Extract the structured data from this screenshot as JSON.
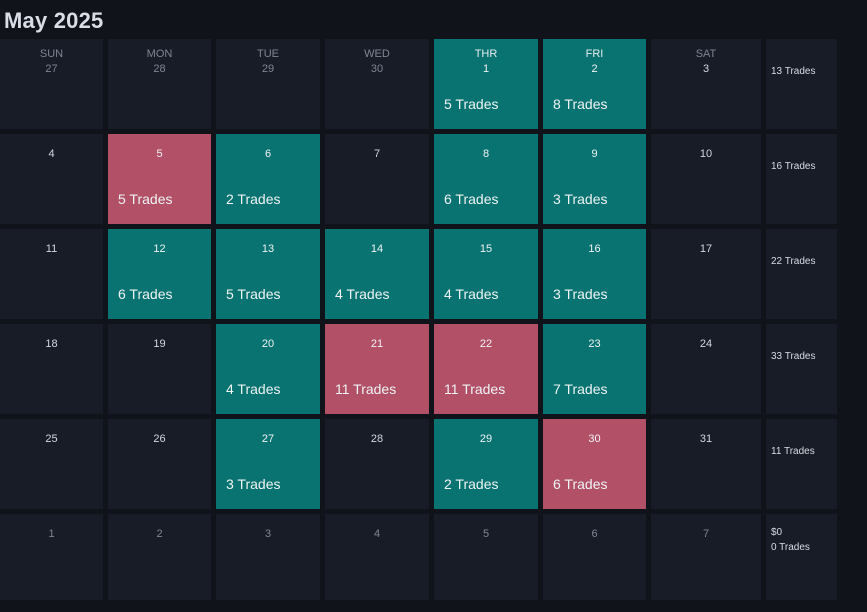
{
  "calendar": {
    "title": "May 2025",
    "weekdays": [
      "SUN",
      "MON",
      "TUE",
      "WED",
      "THR",
      "FRI",
      "SAT"
    ],
    "weeks": [
      {
        "days": [
          {
            "num": "27",
            "muted": true,
            "status": "none",
            "trades": ""
          },
          {
            "num": "28",
            "muted": true,
            "status": "none",
            "trades": ""
          },
          {
            "num": "29",
            "muted": true,
            "status": "none",
            "trades": ""
          },
          {
            "num": "30",
            "muted": true,
            "status": "none",
            "trades": ""
          },
          {
            "num": "1",
            "muted": false,
            "status": "win",
            "trades": "5 Trades"
          },
          {
            "num": "2",
            "muted": false,
            "status": "win",
            "trades": "8 Trades"
          },
          {
            "num": "3",
            "muted": false,
            "status": "none",
            "trades": ""
          }
        ],
        "summary": {
          "pnl": "",
          "trades": "13 Trades"
        }
      },
      {
        "days": [
          {
            "num": "4",
            "muted": false,
            "status": "none",
            "trades": ""
          },
          {
            "num": "5",
            "muted": false,
            "status": "loss",
            "trades": "5 Trades"
          },
          {
            "num": "6",
            "muted": false,
            "status": "win",
            "trades": "2 Trades"
          },
          {
            "num": "7",
            "muted": false,
            "status": "none",
            "trades": ""
          },
          {
            "num": "8",
            "muted": false,
            "status": "win",
            "trades": "6 Trades"
          },
          {
            "num": "9",
            "muted": false,
            "status": "win",
            "trades": "3 Trades"
          },
          {
            "num": "10",
            "muted": false,
            "status": "none",
            "trades": ""
          }
        ],
        "summary": {
          "pnl": "",
          "trades": "16 Trades"
        }
      },
      {
        "days": [
          {
            "num": "11",
            "muted": false,
            "status": "none",
            "trades": ""
          },
          {
            "num": "12",
            "muted": false,
            "status": "win",
            "trades": "6 Trades"
          },
          {
            "num": "13",
            "muted": false,
            "status": "win",
            "trades": "5 Trades"
          },
          {
            "num": "14",
            "muted": false,
            "status": "win",
            "trades": "4 Trades"
          },
          {
            "num": "15",
            "muted": false,
            "status": "win",
            "trades": "4 Trades"
          },
          {
            "num": "16",
            "muted": false,
            "status": "win",
            "trades": "3 Trades"
          },
          {
            "num": "17",
            "muted": false,
            "status": "none",
            "trades": ""
          }
        ],
        "summary": {
          "pnl": "",
          "trades": "22 Trades"
        }
      },
      {
        "days": [
          {
            "num": "18",
            "muted": false,
            "status": "none",
            "trades": ""
          },
          {
            "num": "19",
            "muted": false,
            "status": "none",
            "trades": ""
          },
          {
            "num": "20",
            "muted": false,
            "status": "win",
            "trades": "4 Trades"
          },
          {
            "num": "21",
            "muted": false,
            "status": "loss",
            "trades": "11 Trades"
          },
          {
            "num": "22",
            "muted": false,
            "status": "loss",
            "trades": "11 Trades"
          },
          {
            "num": "23",
            "muted": false,
            "status": "win",
            "trades": "7 Trades"
          },
          {
            "num": "24",
            "muted": false,
            "status": "none",
            "trades": ""
          }
        ],
        "summary": {
          "pnl": "",
          "trades": "33 Trades"
        }
      },
      {
        "days": [
          {
            "num": "25",
            "muted": false,
            "status": "none",
            "trades": ""
          },
          {
            "num": "26",
            "muted": false,
            "status": "none",
            "trades": ""
          },
          {
            "num": "27",
            "muted": false,
            "status": "win",
            "trades": "3 Trades"
          },
          {
            "num": "28",
            "muted": false,
            "status": "none",
            "trades": ""
          },
          {
            "num": "29",
            "muted": false,
            "status": "win",
            "trades": "2 Trades"
          },
          {
            "num": "30",
            "muted": false,
            "status": "loss",
            "trades": "6 Trades"
          },
          {
            "num": "31",
            "muted": false,
            "status": "none",
            "trades": ""
          }
        ],
        "summary": {
          "pnl": "",
          "trades": "11 Trades"
        }
      },
      {
        "days": [
          {
            "num": "1",
            "muted": true,
            "status": "none",
            "trades": ""
          },
          {
            "num": "2",
            "muted": true,
            "status": "none",
            "trades": ""
          },
          {
            "num": "3",
            "muted": true,
            "status": "none",
            "trades": ""
          },
          {
            "num": "4",
            "muted": true,
            "status": "none",
            "trades": ""
          },
          {
            "num": "5",
            "muted": true,
            "status": "none",
            "trades": ""
          },
          {
            "num": "6",
            "muted": true,
            "status": "none",
            "trades": ""
          },
          {
            "num": "7",
            "muted": true,
            "status": "none",
            "trades": ""
          }
        ],
        "summary": {
          "pnl": "$0",
          "trades": "0 Trades"
        }
      }
    ]
  },
  "colors": {
    "win": "#087370",
    "loss": "#b25068",
    "empty": "#181c26",
    "background": "#10131a"
  }
}
